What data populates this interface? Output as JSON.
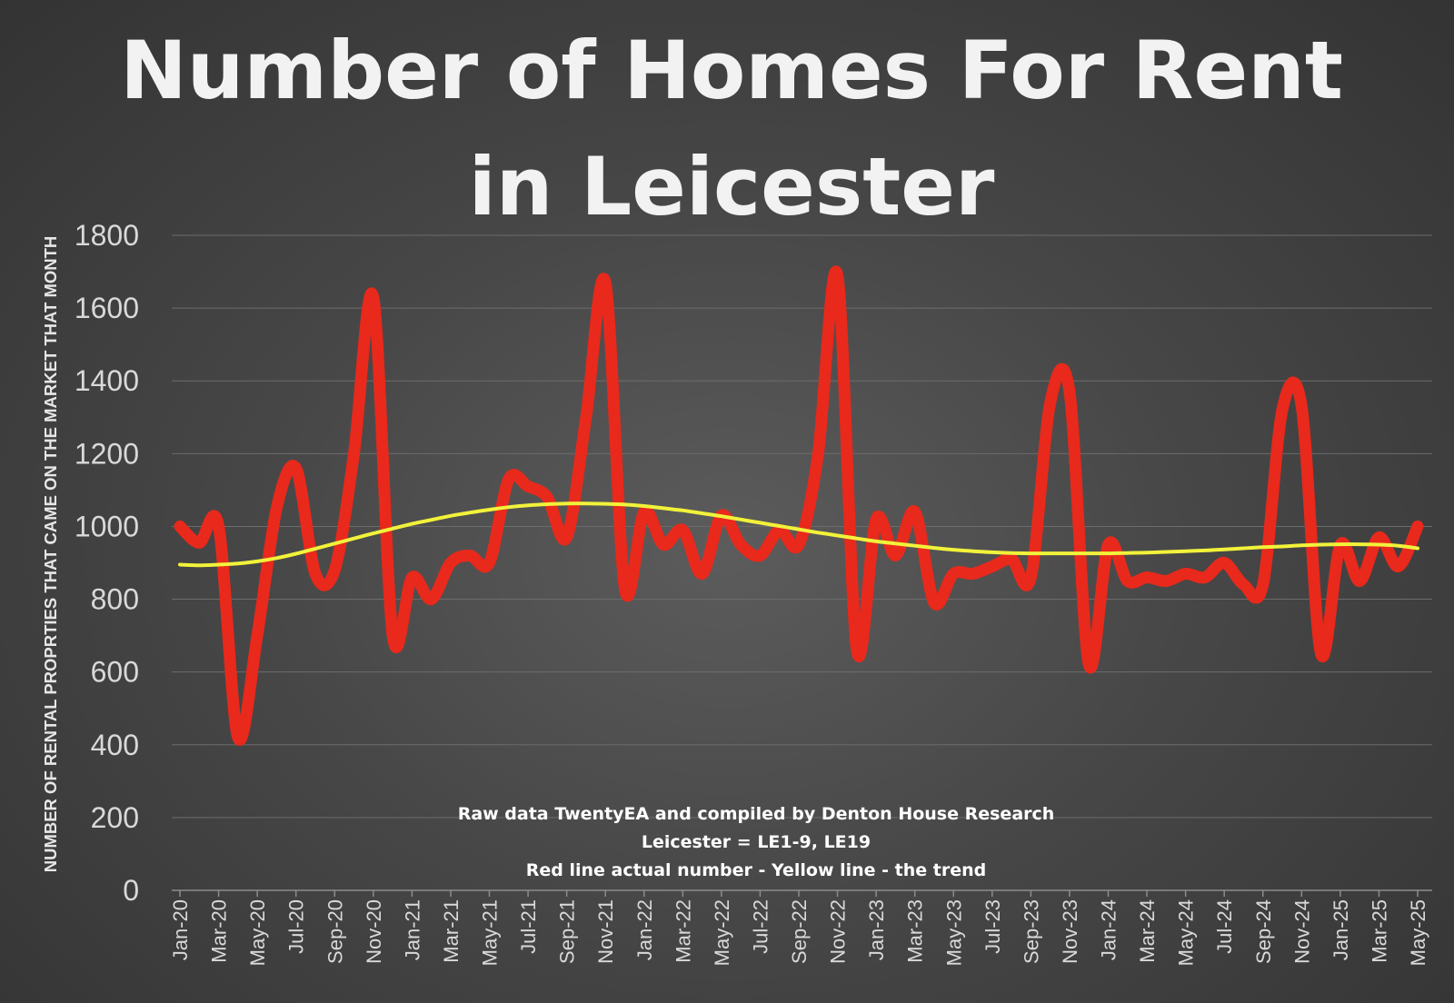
{
  "chart_data": {
    "type": "line",
    "title_lines": [
      "Number of Homes For Rent",
      "in Leicester"
    ],
    "ylabel": "NUMBER OF RENTAL PROPRTIES THAT CAME ON THE MARKET THAT MONTH",
    "xlabel": "",
    "ylim": [
      0,
      1800
    ],
    "yticks": [
      "0",
      "200",
      "400",
      "600",
      "800",
      "1000",
      "1200",
      "1400",
      "1600",
      "1800"
    ],
    "xtick_labels": [
      "Jan-20",
      "Mar-20",
      "May-20",
      "Jul-20",
      "Sep-20",
      "Nov-20",
      "Jan-21",
      "Mar-21",
      "May-21",
      "Jul-21",
      "Sep-21",
      "Nov-21",
      "Jan-22",
      "Mar-22",
      "May-22",
      "Jul-22",
      "Sep-22",
      "Nov-22",
      "Jan-23",
      "Mar-23",
      "May-23",
      "Jul-23",
      "Sep-23",
      "Nov-23",
      "Jan-24",
      "Mar-24",
      "May-24",
      "Jul-24",
      "Sep-24",
      "Nov-24",
      "Jan-25",
      "Mar-25",
      "May-25"
    ],
    "x": [
      "Jan-20",
      "Feb-20",
      "Mar-20",
      "Apr-20",
      "May-20",
      "Jun-20",
      "Jul-20",
      "Aug-20",
      "Sep-20",
      "Oct-20",
      "Nov-20",
      "Dec-20",
      "Jan-21",
      "Feb-21",
      "Mar-21",
      "Apr-21",
      "May-21",
      "Jun-21",
      "Jul-21",
      "Aug-21",
      "Sep-21",
      "Oct-21",
      "Nov-21",
      "Dec-21",
      "Jan-22",
      "Feb-22",
      "Mar-22",
      "Apr-22",
      "May-22",
      "Jun-22",
      "Jul-22",
      "Aug-22",
      "Sep-22",
      "Oct-22",
      "Nov-22",
      "Dec-22",
      "Jan-23",
      "Feb-23",
      "Mar-23",
      "Apr-23",
      "May-23",
      "Jun-23",
      "Jul-23",
      "Aug-23",
      "Sep-23",
      "Oct-23",
      "Nov-23",
      "Dec-23",
      "Jan-24",
      "Feb-24",
      "Mar-24",
      "Apr-24",
      "May-24",
      "Jun-24",
      "Jul-24",
      "Aug-24",
      "Sep-24",
      "Oct-24",
      "Nov-24",
      "Dec-24",
      "Jan-25",
      "Feb-25",
      "Mar-25",
      "Apr-25",
      "May-25"
    ],
    "series": [
      {
        "name": "Red line actual number",
        "color": "#e8291c",
        "values": [
          1000,
          955,
          1000,
          420,
          700,
          1050,
          1160,
          870,
          880,
          1200,
          1630,
          700,
          860,
          800,
          900,
          920,
          900,
          1130,
          1110,
          1080,
          970,
          1300,
          1670,
          830,
          1040,
          950,
          990,
          870,
          1030,
          950,
          920,
          990,
          950,
          1200,
          1690,
          660,
          1020,
          920,
          1040,
          790,
          870,
          870,
          890,
          910,
          860,
          1340,
          1370,
          620,
          950,
          850,
          860,
          850,
          870,
          860,
          900,
          840,
          840,
          1320,
          1330,
          650,
          950,
          850,
          970,
          890,
          1000
        ]
      },
      {
        "name": "Yellow line - the trend",
        "color": "#f2f23a",
        "values": [
          895,
          893,
          895,
          898,
          904,
          913,
          925,
          939,
          953,
          967,
          981,
          994,
          1007,
          1018,
          1029,
          1038,
          1046,
          1053,
          1058,
          1061,
          1063,
          1063,
          1062,
          1060,
          1056,
          1050,
          1044,
          1036,
          1028,
          1019,
          1010,
          1001,
          992,
          983,
          975,
          967,
          959,
          953,
          947,
          941,
          936,
          932,
          929,
          927,
          926,
          926,
          926,
          926,
          926,
          927,
          928,
          930,
          932,
          934,
          937,
          940,
          943,
          945,
          948,
          950,
          951,
          951,
          950,
          947,
          940
        ]
      }
    ],
    "annotations": [
      "Raw data TwentyEA and compiled by Denton House Research",
      "Leicester = LE1-9, LE19",
      "Red line actual number - Yellow line  - the trend"
    ]
  }
}
